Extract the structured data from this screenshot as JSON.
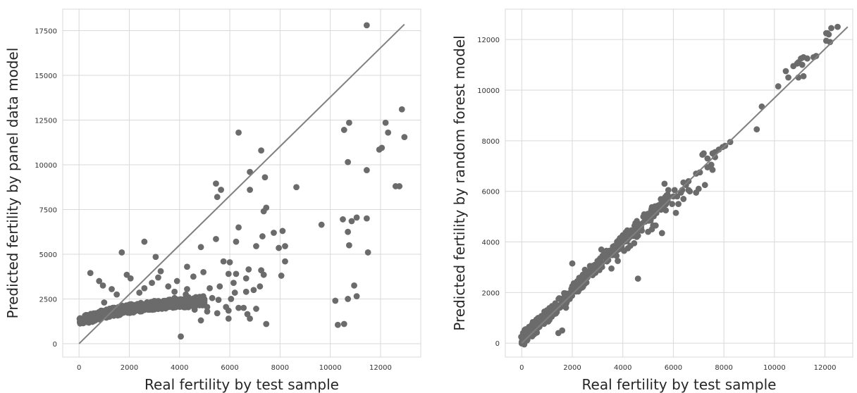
{
  "chart_data": [
    {
      "type": "scatter",
      "xlabel": "Real fertility by test sample",
      "ylabel": "Predicted fertility by panel data model",
      "xlim": [
        -650,
        13600
      ],
      "ylim": [
        -750,
        18700
      ],
      "xticks": [
        0,
        2000,
        4000,
        6000,
        8000,
        10000,
        12000
      ],
      "yticks": [
        0,
        2500,
        5000,
        7500,
        10000,
        12500,
        15000,
        17500
      ],
      "grid": true,
      "marker_color": "#6b6b6b",
      "line_color": "#808080",
      "reference_line": {
        "x": [
          0,
          12950
        ],
        "y": [
          0,
          17850
        ]
      },
      "points": [
        [
          11450,
          17800
        ],
        [
          6350,
          11800
        ],
        [
          7250,
          10800
        ],
        [
          6800,
          9600
        ],
        [
          7400,
          9300
        ],
        [
          5450,
          8950
        ],
        [
          5500,
          8200
        ],
        [
          5650,
          8600
        ],
        [
          6800,
          8600
        ],
        [
          7350,
          7400
        ],
        [
          7450,
          7600
        ],
        [
          8650,
          8750
        ],
        [
          10750,
          12350
        ],
        [
          10550,
          11950
        ],
        [
          12200,
          12350
        ],
        [
          12300,
          11800
        ],
        [
          12850,
          13100
        ],
        [
          12950,
          11550
        ],
        [
          11950,
          10850
        ],
        [
          12050,
          10950
        ],
        [
          12600,
          8800
        ],
        [
          12750,
          8800
        ],
        [
          10700,
          10150
        ],
        [
          11450,
          9700
        ],
        [
          10850,
          6850
        ],
        [
          11050,
          7050
        ],
        [
          11450,
          7000
        ],
        [
          10500,
          6950
        ],
        [
          9650,
          6650
        ],
        [
          10700,
          6250
        ],
        [
          10750,
          5500
        ],
        [
          11500,
          5100
        ],
        [
          10200,
          2400
        ],
        [
          10700,
          2500
        ],
        [
          11050,
          2650
        ],
        [
          10950,
          3250
        ],
        [
          10300,
          1050
        ],
        [
          10550,
          1100
        ],
        [
          7050,
          1950
        ],
        [
          7450,
          1100
        ],
        [
          8100,
          6300
        ],
        [
          7750,
          6200
        ],
        [
          7300,
          6000
        ],
        [
          7050,
          5450
        ],
        [
          7950,
          5350
        ],
        [
          8200,
          5450
        ],
        [
          8200,
          4600
        ],
        [
          8050,
          3800
        ],
        [
          7350,
          3850
        ],
        [
          6650,
          3650
        ],
        [
          6250,
          5700
        ],
        [
          6350,
          6500
        ],
        [
          6000,
          4550
        ],
        [
          5450,
          5850
        ],
        [
          4850,
          5400
        ],
        [
          5950,
          3900
        ],
        [
          6250,
          3900
        ],
        [
          6650,
          2900
        ],
        [
          6200,
          2850
        ],
        [
          6350,
          2000
        ],
        [
          6550,
          2000
        ],
        [
          5550,
          2450
        ],
        [
          5950,
          1850
        ],
        [
          5100,
          2050
        ],
        [
          4300,
          4300
        ],
        [
          3050,
          4850
        ],
        [
          2600,
          5700
        ],
        [
          1700,
          5100
        ],
        [
          450,
          3950
        ],
        [
          950,
          3250
        ],
        [
          1900,
          3850
        ],
        [
          2050,
          3650
        ],
        [
          2900,
          3400
        ],
        [
          4050,
          400
        ],
        [
          3300,
          1950
        ],
        [
          3700,
          2100
        ],
        [
          3800,
          2550
        ],
        [
          4100,
          2350
        ],
        [
          4250,
          2750
        ],
        [
          4450,
          2200
        ],
        [
          4600,
          1900
        ],
        [
          5200,
          3100
        ],
        [
          6950,
          3000
        ],
        [
          6150,
          3400
        ],
        [
          5600,
          3200
        ],
        [
          5300,
          2550
        ],
        [
          2400,
          2850
        ],
        [
          1000,
          2300
        ],
        [
          1300,
          3050
        ],
        [
          4300,
          3050
        ],
        [
          3900,
          3500
        ],
        [
          3550,
          3200
        ],
        [
          4550,
          3750
        ],
        [
          4950,
          4000
        ],
        [
          5750,
          4600
        ],
        [
          6750,
          4150
        ],
        [
          7250,
          4100
        ],
        [
          5500,
          1700
        ],
        [
          4850,
          1300
        ],
        [
          6700,
          1650
        ],
        [
          5100,
          1800
        ],
        [
          7200,
          3200
        ],
        [
          3150,
          3700
        ],
        [
          2600,
          3100
        ],
        [
          2150,
          2100
        ],
        [
          1500,
          2750
        ],
        [
          800,
          3500
        ],
        [
          3250,
          4050
        ],
        [
          4350,
          2600
        ],
        [
          3800,
          2900
        ],
        [
          5850,
          2050
        ],
        [
          6050,
          2500
        ],
        [
          2750,
          1900
        ],
        [
          6800,
          1400
        ],
        [
          4650,
          2600
        ],
        [
          5950,
          1400
        ]
      ],
      "dense_band": [
        [
          0,
          1100,
          1400
        ],
        [
          250,
          1100,
          1600
        ],
        [
          500,
          1200,
          1700
        ],
        [
          750,
          1300,
          1800
        ],
        [
          1000,
          1400,
          1900
        ],
        [
          1250,
          1500,
          2000
        ],
        [
          1500,
          1550,
          2050
        ],
        [
          1750,
          1650,
          2150
        ],
        [
          2000,
          1700,
          2200
        ],
        [
          2250,
          1750,
          2250
        ],
        [
          2500,
          1800,
          2300
        ],
        [
          2750,
          1850,
          2350
        ],
        [
          3000,
          1900,
          2400
        ],
        [
          3250,
          1950,
          2400
        ],
        [
          3500,
          1950,
          2450
        ],
        [
          3750,
          2000,
          2500
        ],
        [
          4000,
          2050,
          2500
        ],
        [
          4250,
          2000,
          2550
        ],
        [
          4500,
          2050,
          2600
        ],
        [
          4750,
          2100,
          2650
        ],
        [
          5000,
          2150,
          2700
        ]
      ]
    },
    {
      "type": "scatter",
      "xlabel": "Real fertility by test sample",
      "ylabel": "Predicted fertility by random forest model",
      "xlim": [
        -650,
        13100
      ],
      "ylim": [
        -550,
        13200
      ],
      "xticks": [
        0,
        2000,
        4000,
        6000,
        8000,
        10000,
        12000
      ],
      "yticks": [
        0,
        2000,
        4000,
        6000,
        8000,
        10000,
        12000
      ],
      "grid": true,
      "marker_color": "#6b6b6b",
      "line_color": "#808080",
      "reference_line": {
        "x": [
          0,
          12900
        ],
        "y": [
          0,
          12500
        ]
      },
      "points": [
        [
          12500,
          12500
        ],
        [
          12250,
          12450
        ],
        [
          12050,
          12250
        ],
        [
          12150,
          12200
        ],
        [
          12200,
          11900
        ],
        [
          12050,
          11950
        ],
        [
          12100,
          12250
        ],
        [
          11650,
          11350
        ],
        [
          11550,
          11300
        ],
        [
          11300,
          11250
        ],
        [
          11050,
          11250
        ],
        [
          11150,
          11300
        ],
        [
          10950,
          11100
        ],
        [
          10900,
          11050
        ],
        [
          11100,
          11000
        ],
        [
          11150,
          10550
        ],
        [
          10450,
          10750
        ],
        [
          10550,
          10500
        ],
        [
          10150,
          10150
        ],
        [
          10950,
          10500
        ],
        [
          10750,
          10950
        ],
        [
          9500,
          9350
        ],
        [
          9300,
          8450
        ],
        [
          8250,
          7950
        ],
        [
          8050,
          7800
        ],
        [
          7950,
          7750
        ],
        [
          7650,
          7550
        ],
        [
          7800,
          7650
        ],
        [
          7550,
          7500
        ],
        [
          7350,
          7300
        ],
        [
          7200,
          7500
        ],
        [
          7150,
          7450
        ],
        [
          7650,
          7350
        ],
        [
          7550,
          6850
        ],
        [
          7350,
          6950
        ],
        [
          7500,
          7050
        ],
        [
          6900,
          6700
        ],
        [
          7050,
          6750
        ],
        [
          7250,
          6250
        ],
        [
          6400,
          6350
        ],
        [
          6600,
          6400
        ],
        [
          6500,
          6250
        ],
        [
          6350,
          6050
        ],
        [
          6000,
          5800
        ],
        [
          5650,
          6300
        ],
        [
          5800,
          6050
        ],
        [
          5550,
          5400
        ],
        [
          6050,
          6050
        ],
        [
          6150,
          5800
        ],
        [
          5700,
          5250
        ],
        [
          6600,
          6050
        ],
        [
          6200,
          5500
        ],
        [
          6400,
          5700
        ],
        [
          6650,
          6000
        ],
        [
          7000,
          6100
        ],
        [
          6100,
          5150
        ],
        [
          5550,
          4350
        ],
        [
          5300,
          4650
        ],
        [
          4600,
          4250
        ],
        [
          4450,
          3950
        ],
        [
          4550,
          4200
        ],
        [
          4750,
          4450
        ],
        [
          4950,
          4850
        ],
        [
          5050,
          5000
        ],
        [
          5100,
          4850
        ],
        [
          5400,
          5350
        ],
        [
          5300,
          5250
        ],
        [
          4600,
          2550
        ],
        [
          3550,
          2950
        ],
        [
          3800,
          3250
        ],
        [
          3950,
          3800
        ],
        [
          4050,
          3650
        ],
        [
          4300,
          3850
        ],
        [
          4200,
          3750
        ],
        [
          4350,
          4250
        ],
        [
          3350,
          3650
        ],
        [
          3150,
          3700
        ],
        [
          3400,
          3400
        ],
        [
          2700,
          3050
        ],
        [
          2900,
          3100
        ],
        [
          2500,
          2900
        ],
        [
          2500,
          2350
        ],
        [
          2200,
          2450
        ],
        [
          2000,
          2250
        ],
        [
          1900,
          1750
        ],
        [
          1700,
          1950
        ],
        [
          1500,
          1400
        ],
        [
          1800,
          1850
        ],
        [
          1650,
          1700
        ],
        [
          1600,
          500
        ],
        [
          1450,
          400
        ],
        [
          1000,
          1100
        ],
        [
          1350,
          1350
        ],
        [
          1200,
          1250
        ],
        [
          900,
          1050
        ],
        [
          750,
          900
        ],
        [
          700,
          650
        ],
        [
          550,
          450
        ],
        [
          450,
          350
        ],
        [
          500,
          700
        ],
        [
          350,
          500
        ],
        [
          250,
          250
        ],
        [
          100,
          150
        ],
        [
          50,
          400
        ],
        [
          150,
          550
        ],
        [
          200,
          300
        ],
        [
          0,
          50
        ],
        [
          50,
          150
        ],
        [
          100,
          -50
        ],
        [
          0,
          -10
        ],
        [
          -20,
          250
        ],
        [
          500,
          600
        ],
        [
          600,
          750
        ],
        [
          2300,
          2150
        ],
        [
          2000,
          3150
        ],
        [
          1750,
          1400
        ],
        [
          3500,
          3650
        ],
        [
          5000,
          4400
        ],
        [
          5200,
          4650
        ],
        [
          6900,
          5950
        ],
        [
          4500,
          4650
        ],
        [
          4700,
          4600
        ],
        [
          4850,
          4800
        ],
        [
          3000,
          3250
        ],
        [
          2600,
          2600
        ],
        [
          4150,
          4250
        ],
        [
          3750,
          3450
        ],
        [
          5150,
          4500
        ],
        [
          6300,
          5950
        ],
        [
          5950,
          5500
        ]
      ],
      "dense_band": [
        [
          0,
          -50,
          500
        ],
        [
          500,
          300,
          900
        ],
        [
          1000,
          800,
          1350
        ],
        [
          1500,
          1300,
          1800
        ],
        [
          2000,
          1800,
          2350
        ],
        [
          2500,
          2300,
          2800
        ],
        [
          3000,
          2800,
          3300
        ],
        [
          3500,
          3300,
          3800
        ],
        [
          4000,
          3800,
          4300
        ],
        [
          4500,
          4300,
          4800
        ],
        [
          5000,
          4800,
          5250
        ],
        [
          5500,
          5250,
          5700
        ],
        [
          5800,
          5550,
          6000
        ]
      ]
    }
  ]
}
